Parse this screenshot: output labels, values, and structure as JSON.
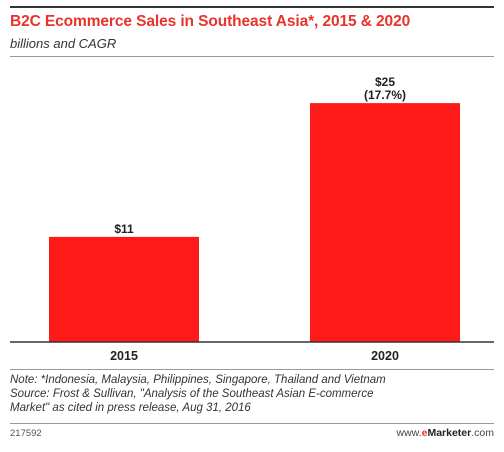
{
  "header": {
    "title": "B2C Ecommerce Sales in Southeast Asia*, 2015 & 2020",
    "subtitle": "billions and CAGR"
  },
  "chart_data": {
    "type": "bar",
    "title": "B2C Ecommerce Sales in Southeast Asia*, 2015 & 2020",
    "subtitle": "billions and CAGR",
    "xlabel": "",
    "ylabel": "",
    "categories": [
      "2015",
      "2020"
    ],
    "values": [
      11,
      25
    ],
    "value_labels": [
      "$11",
      "$25"
    ],
    "annotations": [
      "",
      "(17.7%)"
    ],
    "ylim": [
      0,
      27
    ],
    "grid": false,
    "legend": "none",
    "bar_color": "#ff1a1a"
  },
  "footer": {
    "notes": [
      "Note: *Indonesia, Malaysia, Philippines, Singapore, Thailand and Vietnam",
      "Source: Frost & Sullivan, \"Analysis of the Southeast Asian E-commerce",
      "Market\" as cited in press release, Aug 31, 2016"
    ],
    "chart_id": "217592",
    "brand_prefix": "www.",
    "brand_e": "e",
    "brand_name": "Marketer",
    "brand_suffix": ".com"
  },
  "colors": {
    "title": "#e8332a",
    "bar": "#ff1a1a",
    "text": "#222222"
  }
}
